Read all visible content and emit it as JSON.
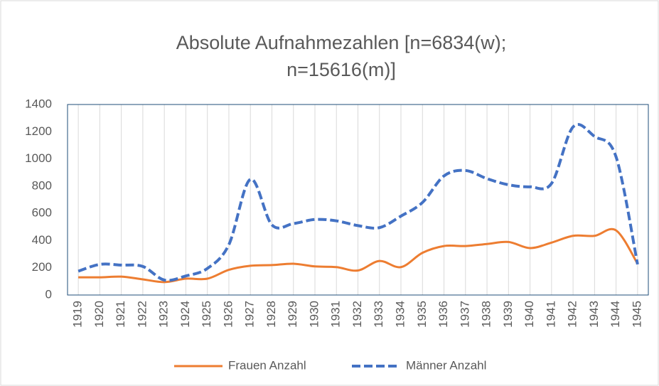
{
  "chart_data": {
    "type": "line",
    "title": [
      "Absolute Aufnahmezahlen [n=6834(w);",
      "n=15616(m)]"
    ],
    "categories": [
      "1919",
      "1920",
      "1921",
      "1922",
      "1923",
      "1924",
      "1925",
      "1926",
      "1927",
      "1928",
      "1929",
      "1930",
      "1931",
      "1932",
      "1933",
      "1934",
      "1935",
      "1936",
      "1937",
      "1938",
      "1939",
      "1940",
      "1941",
      "1942",
      "1943",
      "1944",
      "1945"
    ],
    "series": [
      {
        "name": "Frauen Anzahl",
        "color": "#ED7D31",
        "dash": false,
        "values": [
          130,
          130,
          135,
          115,
          95,
          120,
          120,
          185,
          215,
          220,
          230,
          210,
          205,
          180,
          250,
          205,
          310,
          360,
          360,
          375,
          390,
          345,
          385,
          435,
          435,
          475,
          230
        ]
      },
      {
        "name": "Männer Anzahl",
        "color": "#4472C4",
        "dash": true,
        "values": [
          175,
          225,
          220,
          210,
          110,
          140,
          195,
          370,
          850,
          515,
          525,
          555,
          545,
          510,
          495,
          580,
          680,
          875,
          915,
          855,
          810,
          795,
          820,
          1235,
          1165,
          1015,
          225
        ]
      }
    ],
    "ylim": [
      0,
      1400
    ],
    "yticks": [
      0,
      200,
      400,
      600,
      800,
      1000,
      1200,
      1400
    ],
    "grid": true,
    "legend": "bottom"
  }
}
